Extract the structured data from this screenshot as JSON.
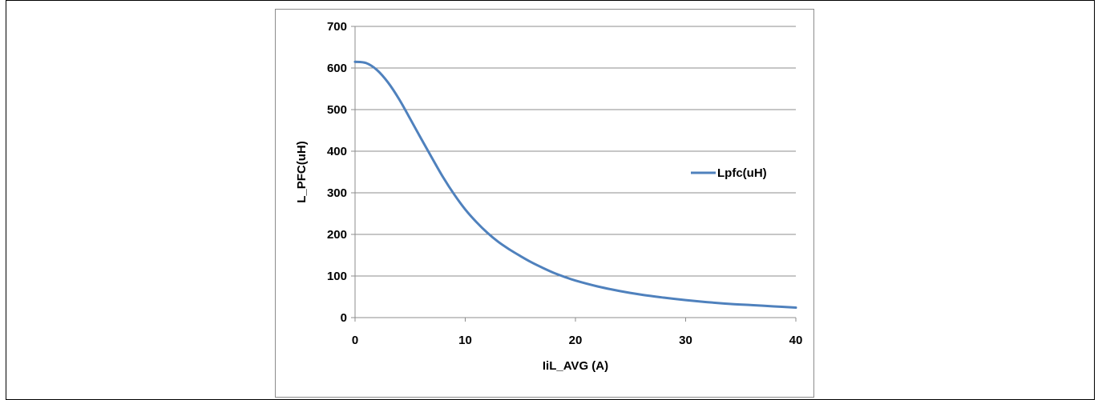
{
  "chart_data": {
    "type": "line",
    "title": "",
    "xlabel": "IiL_AVG (A)",
    "ylabel": "L_PFC(uH)",
    "xlim": [
      0,
      40
    ],
    "ylim": [
      0,
      700
    ],
    "xticks": [
      0,
      10,
      20,
      30,
      40
    ],
    "yticks": [
      0,
      100,
      200,
      300,
      400,
      500,
      600,
      700
    ],
    "grid": "horizontal",
    "legend_position": "right",
    "series": [
      {
        "name": "Lpfc(uH)",
        "color": "#4f81bd",
        "x": [
          0,
          1,
          2,
          3,
          4,
          5,
          6,
          7,
          8,
          9,
          10,
          11,
          12,
          13,
          14,
          15,
          16,
          17,
          18,
          19,
          20,
          22,
          24,
          26,
          28,
          30,
          32,
          34,
          36,
          38,
          40
        ],
        "y": [
          615,
          612,
          595,
          565,
          525,
          478,
          430,
          383,
          337,
          296,
          260,
          230,
          204,
          182,
          164,
          148,
          133,
          120,
          108,
          98,
          89,
          75,
          64,
          55,
          48,
          42,
          37,
          33,
          30,
          27,
          24
        ]
      }
    ]
  }
}
